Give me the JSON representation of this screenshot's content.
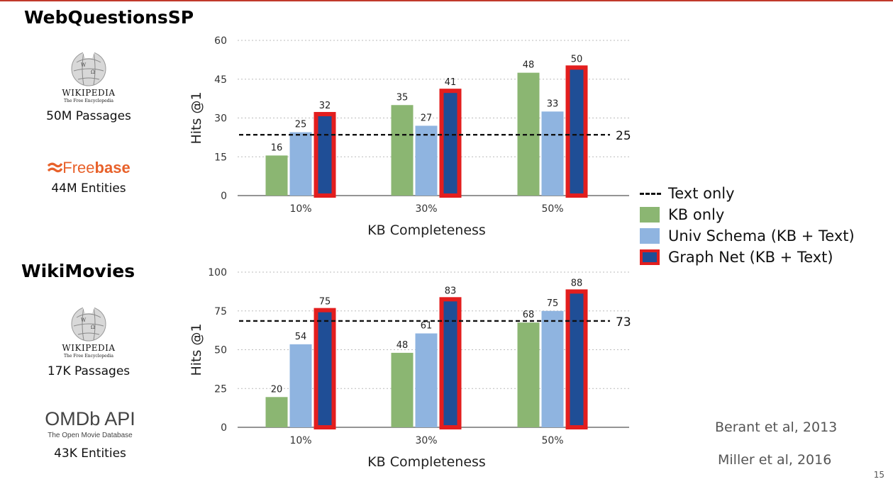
{
  "colors": {
    "kb_only": "#8bb672",
    "univ_schema": "#8fb4e0",
    "graph_net_fill": "#1f4e96",
    "graph_net_border": "#e31e1e",
    "text_only": "#111111",
    "accent": "#c0392b"
  },
  "sections": [
    {
      "title": "WebQuestionsSP",
      "sources": [
        {
          "logo": "WIKIPEDIA",
          "logo_sub": "The Free Encyclopedia",
          "count": "50M Passages"
        },
        {
          "logo_a": "Free",
          "logo_b": "base",
          "count": "44M Entities"
        }
      ]
    },
    {
      "title": "WikiMovies",
      "sources": [
        {
          "logo": "WIKIPEDIA",
          "logo_sub": "The Free Encyclopedia",
          "count": "17K Passages"
        },
        {
          "logo": "OMDb API",
          "logo_sub": "The Open Movie Database",
          "count": "43K Entities"
        }
      ]
    }
  ],
  "legend": {
    "text_only": "Text only",
    "kb_only": "KB only",
    "univ_schema": "Univ Schema (KB + Text)",
    "graph_net": "Graph Net (KB + Text)"
  },
  "chart_data": [
    {
      "type": "bar",
      "categories": [
        "10%",
        "30%",
        "50%"
      ],
      "series": [
        {
          "name": "KB only",
          "values": [
            16,
            35,
            48
          ]
        },
        {
          "name": "Univ Schema (KB + Text)",
          "values": [
            25,
            27,
            33
          ]
        },
        {
          "name": "Graph Net (KB + Text)",
          "values": [
            32,
            41,
            50
          ]
        }
      ],
      "reference_line": {
        "name": "Text only",
        "value": 25
      },
      "bar_values": [
        [
          15.5,
          35,
          47.5
        ],
        [
          24.5,
          27,
          32.5
        ],
        [
          31.5,
          40.5,
          49.5
        ]
      ],
      "reference_position": 23.5,
      "xlabel": "KB Completeness",
      "ylabel": "Hits @1",
      "yticks": [
        0,
        15,
        30,
        45,
        60
      ],
      "ylim": [
        0,
        60
      ],
      "grid": true,
      "legend": "right"
    },
    {
      "type": "bar",
      "categories": [
        "10%",
        "30%",
        "50%"
      ],
      "series": [
        {
          "name": "KB only",
          "values": [
            20,
            48,
            68
          ]
        },
        {
          "name": "Univ Schema (KB + Text)",
          "values": [
            54,
            61,
            75
          ]
        },
        {
          "name": "Graph Net (KB + Text)",
          "values": [
            75,
            83,
            88
          ]
        }
      ],
      "reference_line": {
        "name": "Text only",
        "value": 73
      },
      "bar_values": [
        [
          19.5,
          48,
          67.5
        ],
        [
          53.5,
          60.5,
          75
        ],
        [
          75.5,
          82.5,
          87.5
        ]
      ],
      "reference_position": 68.5,
      "xlabel": "KB Completeness",
      "ylabel": "Hits @1",
      "yticks": [
        0,
        25,
        50,
        75,
        100
      ],
      "ylim": [
        0,
        100
      ],
      "grid": true,
      "legend": "right"
    }
  ],
  "citations": [
    "Berant et al, 2013",
    "Miller et al, 2016"
  ],
  "page_number": "15"
}
